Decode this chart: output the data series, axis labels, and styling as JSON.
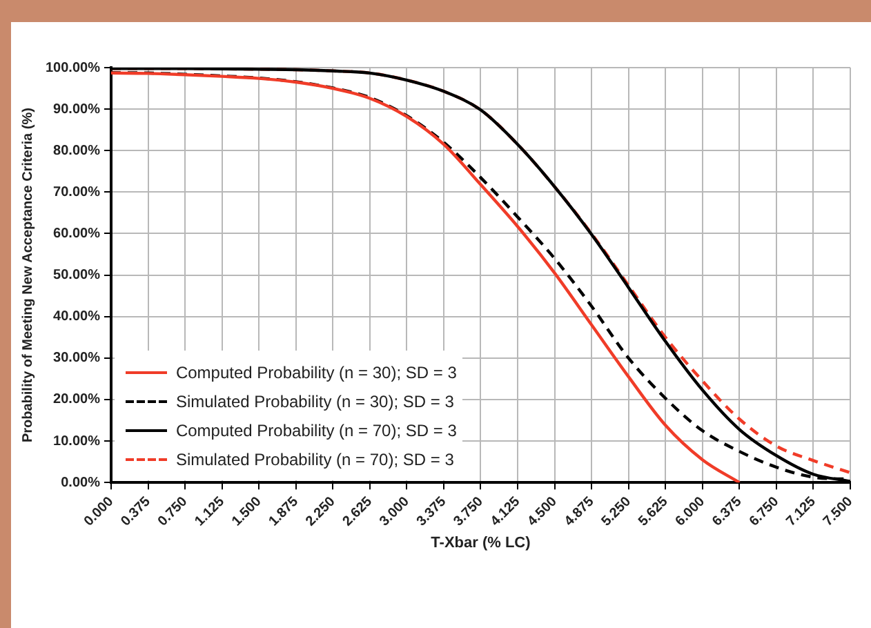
{
  "chart_data": {
    "type": "line",
    "xlabel": "T-Xbar (% LC)",
    "ylabel": "Probability of Meeting New Acceptance Criteria (%)",
    "x": [
      0,
      0.375,
      0.75,
      1.125,
      1.5,
      1.875,
      2.25,
      2.625,
      3.0,
      3.375,
      3.75,
      4.125,
      4.5,
      4.875,
      5.25,
      5.625,
      6.0,
      6.375,
      6.75,
      7.125,
      7.5
    ],
    "series": [
      {
        "name": "Computed Probability (n = 30); SD = 3",
        "color": "#f03c28",
        "line_style": "solid",
        "values": [
          98.7,
          98.6,
          98.3,
          97.9,
          97.4,
          96.5,
          95,
          92.6,
          88.2,
          81.5,
          71.8,
          61.7,
          50.5,
          38,
          25.5,
          13.8,
          5.5,
          0,
          null,
          null,
          null
        ]
      },
      {
        "name": "Simulated Probability (n = 30); SD = 3",
        "color": "#000000",
        "line_style": "dashed",
        "values": [
          98.8,
          98.7,
          98.4,
          98,
          97.5,
          96.6,
          95.1,
          92.8,
          88.4,
          82,
          73.5,
          64,
          54,
          42.5,
          30,
          20.3,
          12.5,
          7.5,
          3.7,
          1.3,
          0.8
        ]
      },
      {
        "name": "Computed Probability (n = 70); SD = 3",
        "color": "#000000",
        "line_style": "solid",
        "values": [
          99.8,
          99.8,
          99.8,
          99.7,
          99.6,
          99.5,
          99.2,
          98.7,
          97,
          94.3,
          89.8,
          81.5,
          71.3,
          59.8,
          47,
          34,
          22.3,
          12.8,
          6.5,
          2,
          0.3
        ]
      },
      {
        "name": "Simulated Probability (n = 70); SD = 3",
        "color": "#f03c28",
        "line_style": "dashed",
        "values": [
          99.8,
          99.8,
          99.8,
          99.7,
          99.6,
          99.5,
          99.2,
          98.7,
          97,
          94.3,
          89.8,
          81.5,
          71.3,
          60,
          47.5,
          35,
          24.5,
          15.3,
          8.8,
          5.3,
          2.4
        ]
      }
    ],
    "xlim": [
      0,
      7.5
    ],
    "xticks": [
      {
        "value": 0,
        "label": "0.000"
      },
      {
        "value": 0.375,
        "label": "0.375"
      },
      {
        "value": 0.75,
        "label": "0.750"
      },
      {
        "value": 1.125,
        "label": "1.125"
      },
      {
        "value": 1.5,
        "label": "1.500"
      },
      {
        "value": 1.875,
        "label": "1.875"
      },
      {
        "value": 2.25,
        "label": "2.250"
      },
      {
        "value": 2.625,
        "label": "2.625"
      },
      {
        "value": 3,
        "label": "3.000"
      },
      {
        "value": 3.375,
        "label": "3.375"
      },
      {
        "value": 3.75,
        "label": "3.750"
      },
      {
        "value": 4.125,
        "label": "4.125"
      },
      {
        "value": 4.5,
        "label": "4.500"
      },
      {
        "value": 4.875,
        "label": "4.875"
      },
      {
        "value": 5.25,
        "label": "5.250"
      },
      {
        "value": 5.625,
        "label": "5.625"
      },
      {
        "value": 6,
        "label": "6.000"
      },
      {
        "value": 6.375,
        "label": "6.375"
      },
      {
        "value": 6.75,
        "label": "6.750"
      },
      {
        "value": 7.125,
        "label": "7.125"
      },
      {
        "value": 7.5,
        "label": "7.500"
      }
    ],
    "ylim": [
      0,
      100
    ],
    "yticks": [
      {
        "value": 0,
        "label": "0.00%"
      },
      {
        "value": 10,
        "label": "10.00%"
      },
      {
        "value": 20,
        "label": "20.00%"
      },
      {
        "value": 30,
        "label": "30.00%"
      },
      {
        "value": 40,
        "label": "40.00%"
      },
      {
        "value": 50,
        "label": "50.00%"
      },
      {
        "value": 60,
        "label": "60.00%"
      },
      {
        "value": 70,
        "label": "70.00%"
      },
      {
        "value": 80,
        "label": "80.00%"
      },
      {
        "value": 90,
        "label": "90.00%"
      },
      {
        "value": 100,
        "label": "100.00%"
      }
    ],
    "grid": true,
    "legend": "bottom left",
    "marker": "none"
  }
}
